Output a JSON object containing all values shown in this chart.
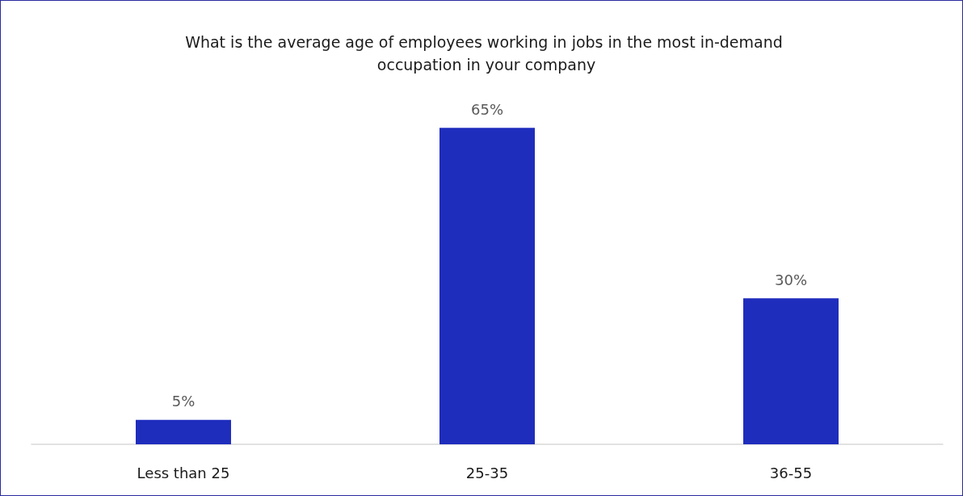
{
  "chart_data": {
    "type": "bar",
    "title": "What is the average age of employees working in jobs in the most in-demand occupation in your company",
    "categories": [
      "Less than 25",
      "25-35",
      "36-55"
    ],
    "values": [
      5,
      65,
      30
    ],
    "value_labels": [
      "5%",
      "65%",
      "30%"
    ],
    "color": "#1f2dbd"
  }
}
